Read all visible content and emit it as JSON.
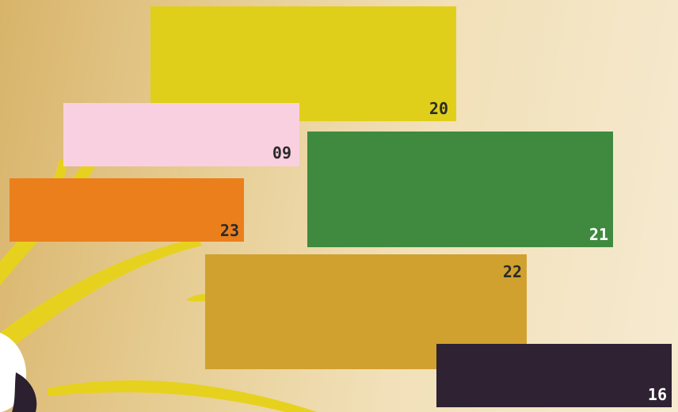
{
  "swatches": [
    {
      "label": "20"
    },
    {
      "label": "09"
    },
    {
      "label": "23"
    },
    {
      "label": "21"
    },
    {
      "label": "22"
    },
    {
      "label": "16"
    }
  ]
}
